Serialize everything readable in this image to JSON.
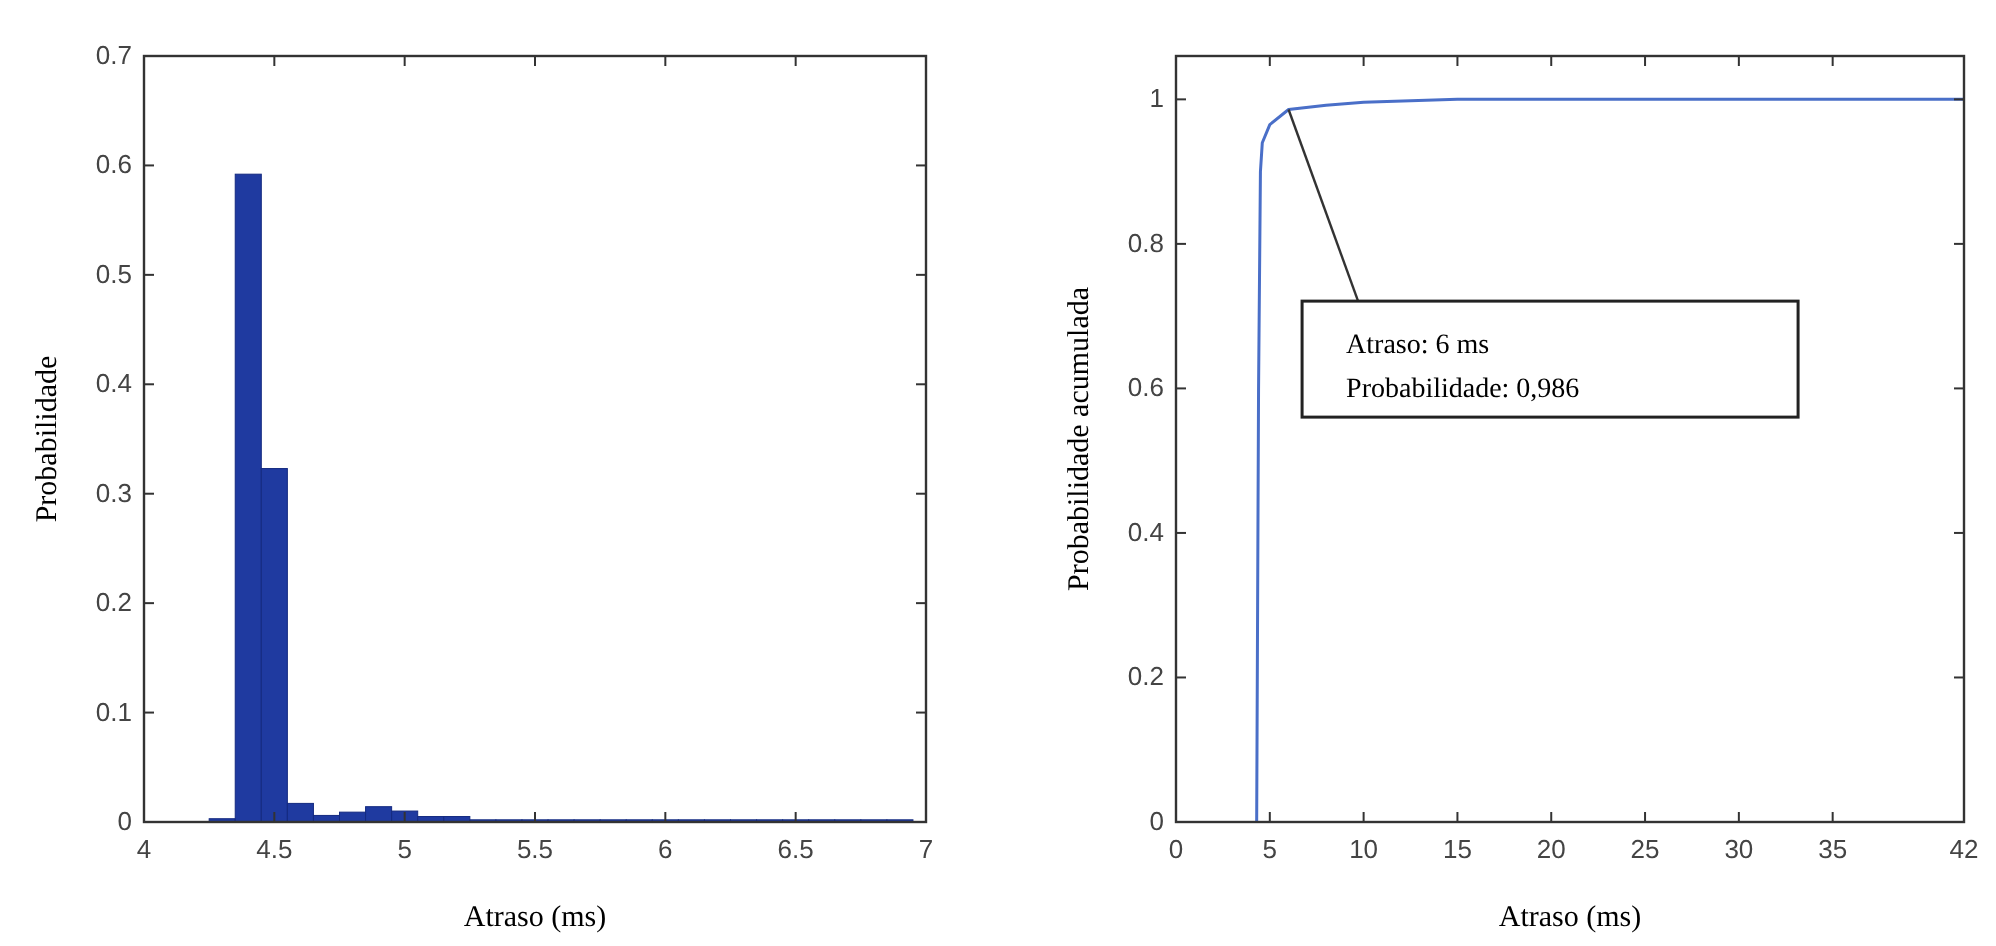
{
  "chart_data": [
    {
      "type": "histogram",
      "xlabel": "Atraso (ms)",
      "ylabel": "Probabilidade",
      "color": "#1f3aa0",
      "bins": [
        4.25,
        4.35,
        4.45,
        4.55,
        4.65,
        4.75,
        4.85,
        4.95,
        5.05,
        5.15,
        5.25,
        5.35,
        5.45,
        5.55,
        5.65,
        5.75,
        5.85,
        5.95,
        6.05,
        6.15,
        6.25,
        6.35,
        6.45,
        6.55,
        6.65,
        6.75,
        6.85,
        6.95
      ],
      "values": [
        0.003,
        0.592,
        0.323,
        0.017,
        0.006,
        0.009,
        0.014,
        0.01,
        0.005,
        0.005,
        0.002,
        0.002,
        0.002,
        0.002,
        0.002,
        0.002,
        0.002,
        0.002,
        0.002,
        0.002,
        0.002,
        0.002,
        0.002,
        0.002,
        0.002,
        0.002,
        0.002
      ],
      "xlim": [
        4,
        7
      ],
      "xticks": [
        4,
        4.5,
        5,
        5.5,
        6,
        6.5,
        7
      ],
      "ylim": [
        0,
        0.7
      ],
      "yticks": [
        0,
        0.1,
        0.2,
        0.3,
        0.4,
        0.5,
        0.6,
        0.7
      ],
      "grid": false
    },
    {
      "type": "line",
      "xlabel": "Atraso (ms)",
      "ylabel": "Probabilidade acumulada",
      "color": "#4a6fc8",
      "x": [
        4.3,
        4.35,
        4.4,
        4.45,
        4.5,
        4.6,
        5,
        6,
        8,
        10,
        15,
        20,
        42
      ],
      "values": [
        0,
        0.3,
        0.6,
        0.75,
        0.9,
        0.94,
        0.965,
        0.986,
        0.992,
        0.996,
        1,
        1,
        1
      ],
      "xlim": [
        0,
        42
      ],
      "xticks": [
        0,
        5,
        10,
        15,
        20,
        25,
        30,
        35,
        42
      ],
      "ylim": [
        0,
        1.06
      ],
      "yticks": [
        0,
        0.2,
        0.4,
        0.6,
        0.8,
        1
      ],
      "grid": false,
      "annotations": [
        {
          "text": "Atraso: 6 ms\nProbabilidade: 0,986",
          "x": 6,
          "y": 0.986
        }
      ]
    }
  ]
}
